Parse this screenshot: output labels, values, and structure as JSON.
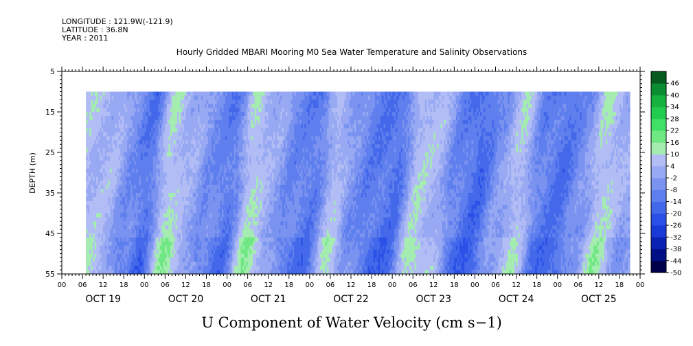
{
  "header": {
    "longitude": "LONGITUDE : 121.9W(-121.9)",
    "latitude": "LATITUDE : 36.8N",
    "year": "YEAR : 2011"
  },
  "chart_data": {
    "type": "heatmap",
    "title": "Hourly Gridded MBARI Mooring M0 Sea Water Temperature and Salinity Observations",
    "xlabel": "U Component of Water Velocity (cm s−1)",
    "ylabel": "DEPTH (m)",
    "y_axis": {
      "ticks": [
        5,
        15,
        25,
        35,
        45,
        55
      ],
      "range": [
        5,
        55
      ],
      "inverted": true
    },
    "x_axis": {
      "hour_ticks": [
        "00",
        "06",
        "12",
        "18",
        "00",
        "06",
        "12",
        "18",
        "00",
        "06",
        "12",
        "18",
        "00",
        "06",
        "12",
        "18",
        "00",
        "06",
        "12",
        "18",
        "00",
        "06",
        "12",
        "18",
        "00",
        "06",
        "12",
        "18",
        "00"
      ],
      "day_labels": [
        "OCT 19",
        "OCT 20",
        "OCT 21",
        "OCT 22",
        "OCT 23",
        "OCT 24",
        "OCT 25"
      ],
      "range_hours": [
        0,
        168
      ]
    },
    "data_extent": {
      "start_hour": 7,
      "end_hour": 165,
      "depth_top": 10,
      "depth_bottom": 55
    },
    "colorbar": {
      "labels": [
        "46",
        "40",
        "34",
        "28",
        "22",
        "16",
        "10",
        "4",
        "-2",
        "-8",
        "-14",
        "-20",
        "-26",
        "-32",
        "-38",
        "-44",
        "-50"
      ],
      "range": [
        -50,
        52
      ]
    },
    "signal_columns": [
      {
        "hour": 8,
        "u": 6
      },
      {
        "hour": 14,
        "u": 4
      },
      {
        "hour": 20,
        "u": -6
      },
      {
        "hour": 25,
        "u": -14
      },
      {
        "hour": 31,
        "u": 10
      },
      {
        "hour": 37,
        "u": 2
      },
      {
        "hour": 43,
        "u": -6
      },
      {
        "hour": 49,
        "u": -12
      },
      {
        "hour": 55,
        "u": 10
      },
      {
        "hour": 61,
        "u": 1
      },
      {
        "hour": 67,
        "u": -8
      },
      {
        "hour": 73,
        "u": -12
      },
      {
        "hour": 79,
        "u": 6
      },
      {
        "hour": 85,
        "u": -6
      },
      {
        "hour": 91,
        "u": -12
      },
      {
        "hour": 97,
        "u": -14
      },
      {
        "hour": 103,
        "u": 8
      },
      {
        "hour": 109,
        "u": 4
      },
      {
        "hour": 115,
        "u": -10
      },
      {
        "hour": 121,
        "u": -16
      },
      {
        "hour": 127,
        "u": -4
      },
      {
        "hour": 133,
        "u": 8
      },
      {
        "hour": 139,
        "u": -10
      },
      {
        "hour": 145,
        "u": -14
      },
      {
        "hour": 151,
        "u": -6
      },
      {
        "hour": 157,
        "u": 10
      },
      {
        "hour": 163,
        "u": 2
      }
    ]
  }
}
